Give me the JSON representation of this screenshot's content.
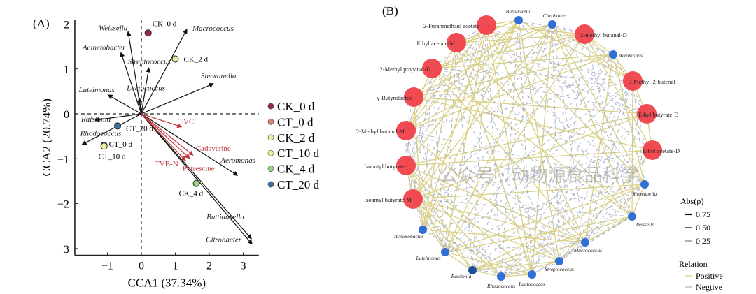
{
  "panel_a_label": "(A)",
  "panel_b_label": "(B)",
  "chart_data": [
    {
      "type": "scatter",
      "subtype": "CCA biplot",
      "xlabel": "CCA1 (37.34%)",
      "ylabel": "CCA2 (20.74%)",
      "xlim": [
        -1.96,
        3.46
      ],
      "ylim": [
        -3.15,
        2.1
      ],
      "xticks": [
        -1,
        0,
        1,
        2,
        3
      ],
      "yticks": [
        -3,
        -2,
        -1,
        0,
        1,
        2
      ],
      "reference_lines": "dashed at x=0 and y=0",
      "samples": [
        {
          "name": "CK_0 d",
          "x": 0.2,
          "y": 1.8,
          "color": "#9b2747"
        },
        {
          "name": "CK_2 d",
          "x": 1.0,
          "y": 1.22,
          "color": "#ece9a3"
        },
        {
          "name": "CT_20 d",
          "x": -0.7,
          "y": -0.27,
          "color": "#3e6fa3"
        },
        {
          "name": "CT_0 d",
          "x": -1.1,
          "y": -0.7,
          "color": "#d9826a"
        },
        {
          "name": "CT_10 d",
          "x": -1.1,
          "y": -0.72,
          "color": "#f0ef9c"
        },
        {
          "name": "CK_4 d",
          "x": 1.62,
          "y": -1.55,
          "color": "#96d77f"
        }
      ],
      "species_vectors": [
        {
          "name": "Weissella",
          "x": -0.39,
          "y": 1.83
        },
        {
          "name": "Macrococcus",
          "x": 1.34,
          "y": 1.88
        },
        {
          "name": "Acinetobacter",
          "x": -0.6,
          "y": 1.36
        },
        {
          "name": "Streptococcus",
          "x": 0.22,
          "y": 1.02
        },
        {
          "name": "Shewanella",
          "x": 2.12,
          "y": 0.67
        },
        {
          "name": "Luteimonas",
          "x": -0.98,
          "y": 0.42
        },
        {
          "name": "Lactococcus",
          "x": -0.06,
          "y": 0.35
        },
        {
          "name": "Ralstonia",
          "x": -1.36,
          "y": -0.14
        },
        {
          "name": "Rhodococcus",
          "x": -1.74,
          "y": -0.68
        },
        {
          "name": "Aeromonas",
          "x": 2.83,
          "y": -1.37
        },
        {
          "name": "Buttiauxella",
          "x": 3.24,
          "y": -2.78
        },
        {
          "name": "Citrobacter",
          "x": 3.26,
          "y": -2.9
        }
      ],
      "environment_vectors": [
        {
          "name": "TVC",
          "x": 1.18,
          "y": -0.29
        },
        {
          "name": "Cadaverine",
          "x": 1.52,
          "y": -0.92
        },
        {
          "name": "Putrescine",
          "x": 1.42,
          "y": -0.99
        },
        {
          "name": "TVB-N",
          "x": 1.3,
          "y": -1.04
        }
      ],
      "legend": [
        "CK_0 d",
        "CT_0 d",
        "CK_2 d",
        "CT_10 d",
        "CK_4 d",
        "CT_20 d"
      ],
      "legend_placement": "right"
    },
    {
      "type": "network",
      "volatile_nodes": [
        "2-Furanmethanl acetate",
        "Ethyl acetate-M",
        "2-Methyl propanal-D",
        "γ-Butyrolactoe",
        "2-Methyl butanal-M",
        "Isobutyl butyrate",
        "Isoamyl butyrate-M",
        "2-methyl butanal-D",
        "3-Methyl-2-butenal",
        "Ethyl butyrate-D",
        "Ethyl acetate-D"
      ],
      "bacteria_nodes": [
        "Buttiauxella",
        "Citrobacter",
        "Aeromonas",
        "Shewanella",
        "Weissella",
        "Macrococcus",
        "Streptococcus",
        "Lactococcus",
        "Rhodococcus",
        "Ralstonia",
        "Luteimonas",
        "Acinetobacter"
      ],
      "volatile_color": "#f0414a",
      "bacteria_color": "#2f6fd6",
      "positive_color": "#d9cf86",
      "negative_color": "#aab2c4",
      "legend": {
        "abs_title": "Abs(ρ)",
        "abs_values": [
          "0.75",
          "0.50",
          "0.25"
        ],
        "relation_title": "Relation",
        "relations": [
          "Positive",
          "Negtive"
        ]
      }
    }
  ],
  "watermark": "公众号 · 动物源食品科学"
}
